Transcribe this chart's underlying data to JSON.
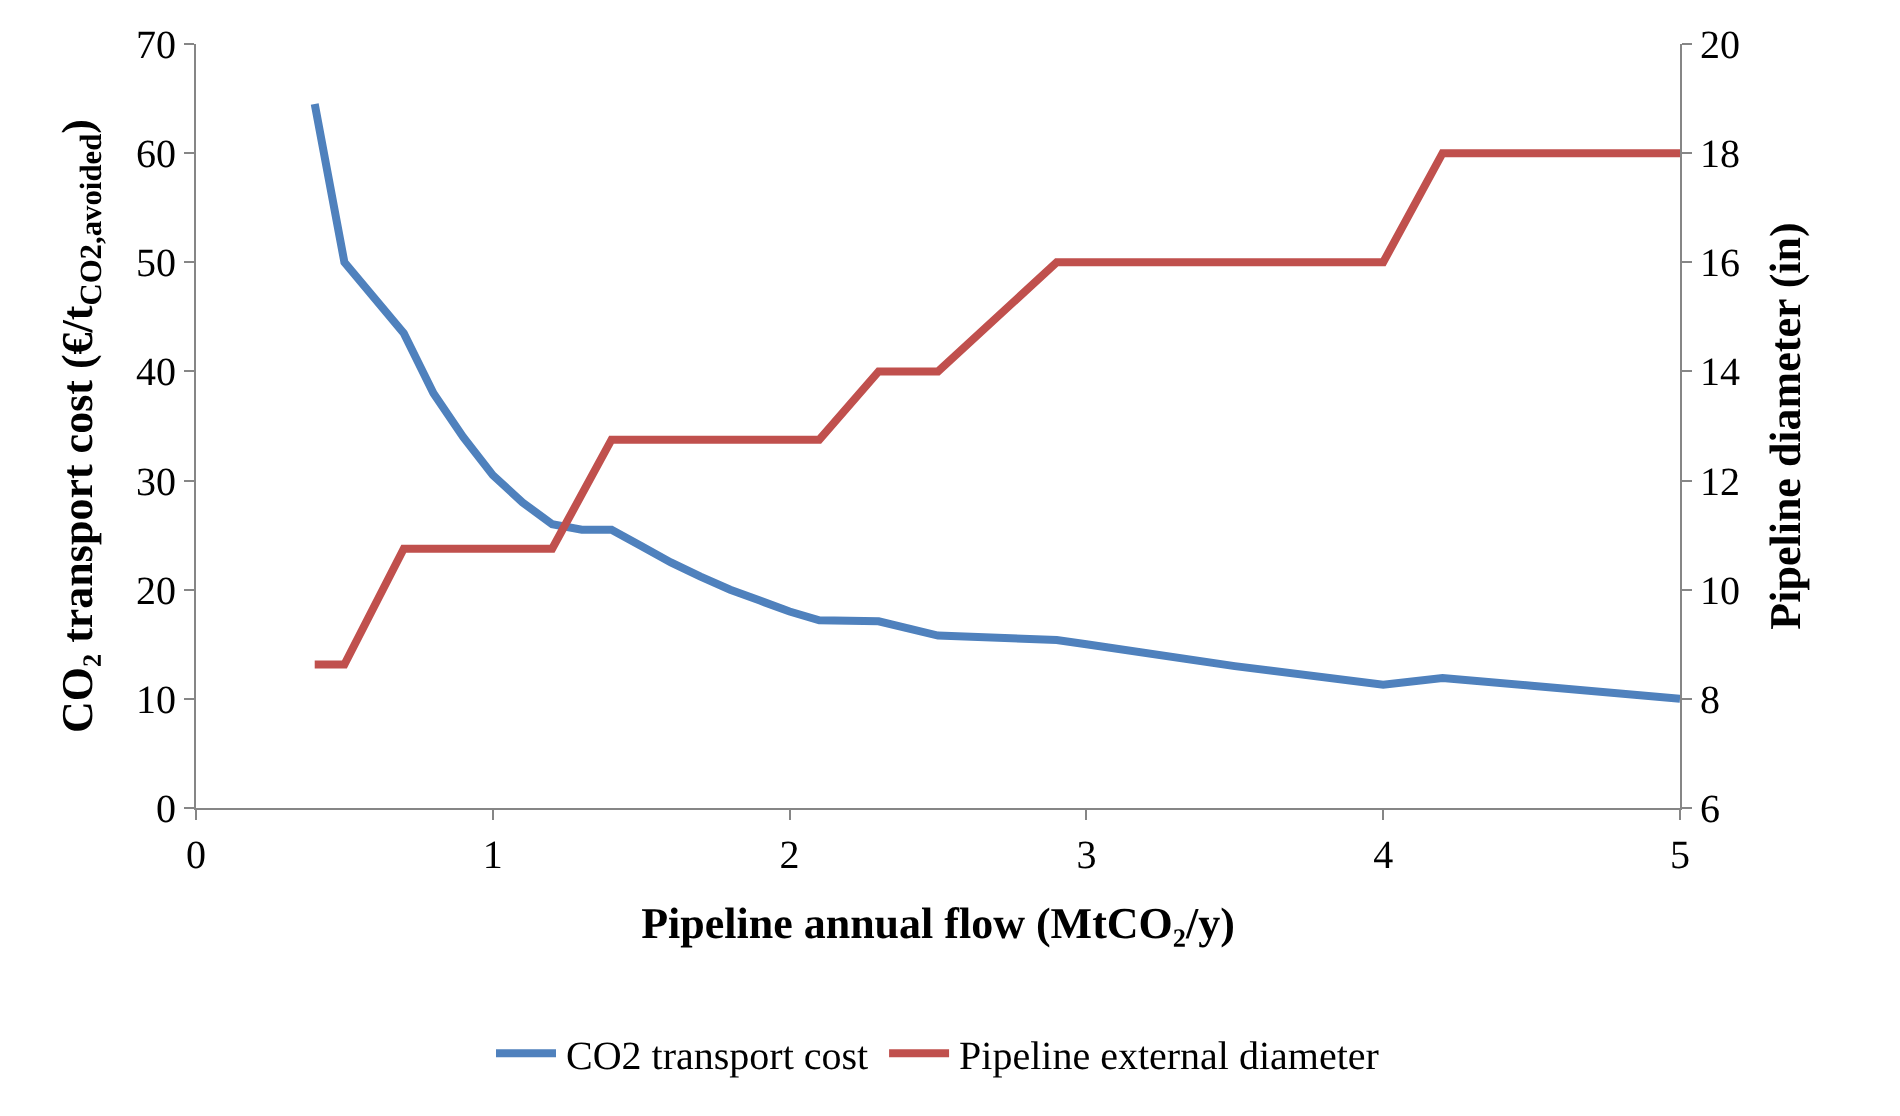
{
  "chart_data": {
    "type": "line",
    "xlabel": "Pipeline annual flow (MtCO₂/y)",
    "ylabel": "CO₂ transport cost (€/t$_{CO2,avoided}$)",
    "y2label": "Pipeline diameter (in)",
    "xlim": [
      0,
      5
    ],
    "xticks": [
      0,
      1,
      2,
      3,
      4,
      5
    ],
    "ylim": [
      0,
      70
    ],
    "yticks": [
      0,
      10,
      20,
      30,
      40,
      50,
      60,
      70
    ],
    "y2lim": [
      6,
      20
    ],
    "y2ticks": [
      6,
      8,
      10,
      12,
      14,
      16,
      18,
      20
    ],
    "legend": "bottom",
    "marker": "none",
    "line_style": "solid",
    "series": [
      {
        "name": "CO2 transport cost",
        "color": "#4f81bd",
        "x": [
          0.4,
          0.5,
          0.7,
          0.8,
          0.9,
          1.0,
          1.1,
          1.2,
          1.3,
          1.4,
          1.5,
          1.6,
          1.7,
          1.8,
          1.9,
          2.0,
          2.1,
          2.3,
          2.5,
          2.9,
          3.0,
          3.5,
          4.0,
          4.2,
          4.5,
          5.0
        ],
        "values": [
          64.5,
          50,
          43.5,
          38,
          34,
          30.5,
          28,
          26,
          25.5,
          25.5,
          24,
          22.5,
          21.2,
          20,
          19,
          18,
          17.2,
          17.1,
          15.8,
          15.4,
          15,
          13,
          11.3,
          11.9,
          11.2,
          10
        ]
      },
      {
        "name": "Pipeline external diameter",
        "color": "#c0504d",
        "axis": "y2",
        "x": [
          0.4,
          0.5,
          0.7,
          1.2,
          1.4,
          2.1,
          2.3,
          2.5,
          2.9,
          4.0,
          4.2,
          5.0
        ],
        "values": [
          8.63,
          8.63,
          10.75,
          10.75,
          12.75,
          12.75,
          14,
          14,
          16,
          16,
          18,
          18
        ]
      }
    ]
  }
}
